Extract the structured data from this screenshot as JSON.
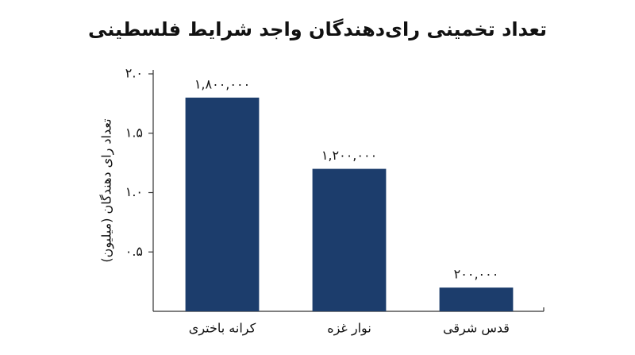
{
  "chart_data": {
    "type": "bar",
    "title": "تعداد تخمینی رای‌دهندگان واجد شرایط فلسطینی",
    "y_label": "تعداد رای دهندگان (میلیون)",
    "categories": [
      "کرانه باختری",
      "نوار غزه",
      "قدس شرقی"
    ],
    "values": [
      1.8,
      1.2,
      0.2
    ],
    "value_labels": [
      "۱,۸۰۰,۰۰۰",
      "۱,۲۰۰,۰۰۰",
      "۲۰۰,۰۰۰"
    ],
    "color": "#1c3d6c",
    "ylim": [
      0,
      2.0
    ],
    "yticks": [
      {
        "value": 0.5,
        "label": "۰.۵"
      },
      {
        "value": 1.0,
        "label": "۱.۰"
      },
      {
        "value": 1.5,
        "label": "۱.۵"
      },
      {
        "value": 2.0,
        "label": "۲.۰"
      }
    ],
    "grid": false
  }
}
